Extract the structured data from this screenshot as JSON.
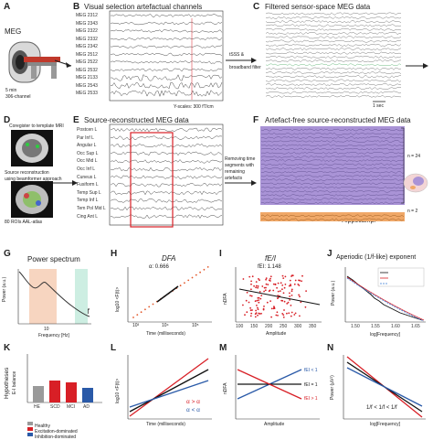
{
  "panel_labels": [
    "A",
    "B",
    "C",
    "D",
    "E",
    "F",
    "G",
    "H",
    "I",
    "J",
    "K",
    "L",
    "M",
    "N"
  ],
  "A": {
    "title": "MEG",
    "note1": "5 min",
    "note2": "306-channel"
  },
  "B": {
    "title": "Visual selection artefactual channels",
    "channels": [
      "MEG 2312",
      "MEG 2343",
      "MEG 2322",
      "MEG 2332",
      "MEG 2342",
      "MEG 2512",
      "MEG 2522",
      "MEG 2532",
      "MEG 2133",
      "MEG 2543",
      "MEG 2533"
    ],
    "yscale": "Y-scales: 300 fT/cm"
  },
  "arrow_bc": {
    "line1": "tSSS &",
    "line2": "broadband filter"
  },
  "C": {
    "title": "Filtered sensor-space MEG data",
    "scale": "1 sec"
  },
  "D": {
    "top": "Coregister to template MRI",
    "mid1": "Source reconstruction",
    "mid2": "using beamformer approach",
    "bottom": "80 ROIs AAL-atlas"
  },
  "E": {
    "title": "Source-reconstructed MEG data",
    "channels": [
      "Postcen L",
      "Par Inf L",
      "Angular L",
      "Occ Sup L",
      "Occ Mid L",
      "Occ Inf L",
      "Cuneus L",
      "Fusiform L",
      "Temp Sup L",
      "Temp Inf L",
      "Tem Pol Mid L",
      "Cing Ant L"
    ]
  },
  "arrow_ef": {
    "line1": "Removing time",
    "line2": "segments with",
    "line3": "remaining",
    "line4": "artefacts"
  },
  "F": {
    "title": "Artefact-free source-reconstructed MEG data",
    "lr1": "L + R",
    "region1a": "Parieto-occipital",
    "region1b": "cortex",
    "n1": "n = 24",
    "lr2": "L + R",
    "region2": "Hippocampi",
    "n2": "n = 2",
    "colors": {
      "parietal": "#a993d6",
      "hippo": "#f0a868"
    }
  },
  "G": {
    "title": "Power spectrum",
    "ylabel": "Power (a.u.)",
    "xlabel": "Frequency [Hz]",
    "tick": "10",
    "band1a": "DFA",
    "band1b": "fEI",
    "band2": "1/f",
    "colors": {
      "band1": "#f7d5c0",
      "band2": "#cdeee2"
    }
  },
  "H": {
    "title": "DFA",
    "alpha": "α: 0.666",
    "ylabel": "log10 <F(t)>",
    "xlabel": "Time (milliseconds)",
    "ticks": [
      "10³",
      "10⁴",
      "10⁵"
    ]
  },
  "I": {
    "title": "fE/I",
    "fei": "fEI: 1.148",
    "ylabel": "nDFA",
    "xlabel": "Amplitude",
    "xticks": [
      "100",
      "150",
      "200",
      "250",
      "300",
      "350"
    ]
  },
  "J": {
    "title": "Aperiodic (1/f-like) exponent",
    "ylabel": "Power (a.u.)",
    "xlabel": "log[Frequency]",
    "legend": [
      "Original Spectrum",
      "Full Model Fit",
      "Aperiodic Fit"
    ],
    "xticks": [
      "1.50",
      "1.55",
      "1.60",
      "1.65"
    ]
  },
  "K": {
    "ylabel": "Hypotheses",
    "ylabel2": "E-I balance",
    "categories": [
      "HE",
      "SCD",
      "MCI",
      "AD"
    ],
    "legend": [
      "Healthy",
      "Excitation-dominated",
      "Inhibition-dominated"
    ],
    "colors": {
      "healthy": "#9a9a9a",
      "exc": "#d81f26",
      "inh": "#2a5aa8"
    }
  },
  "L": {
    "ylabel": "log10 <F(t)>",
    "xlabel": "Time (milliseconds)",
    "leg1": "α > α",
    "leg2": "α < α"
  },
  "M": {
    "ylabel": "nDFA",
    "xlabel": "Amplitude",
    "l1": "fEI < 1",
    "l2": "fEI = 1",
    "l3": "fEI > 1"
  },
  "N": {
    "ylabel": "Power (µV²)",
    "xlabel": "log[Frequency]",
    "legend": "1/f < 1/f < 1/f"
  }
}
